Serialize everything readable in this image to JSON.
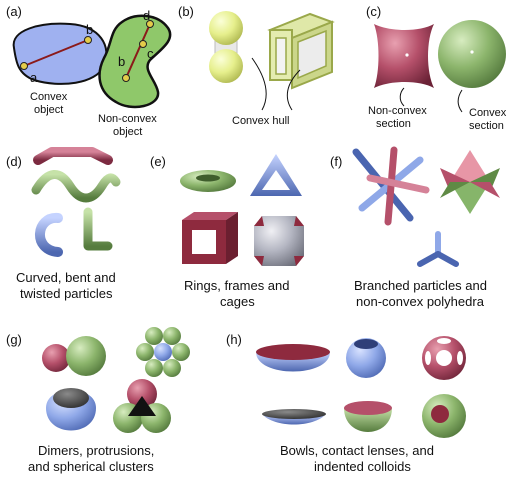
{
  "panels": {
    "a": {
      "tag": "(a)",
      "convex_caption": [
        "Convex",
        "object"
      ],
      "nonconvex_caption": [
        "Non-convex",
        "object"
      ],
      "points_convex": [
        "a",
        "b"
      ],
      "points_nonconvex": [
        "b",
        "c",
        "d"
      ]
    },
    "b": {
      "tag": "(b)",
      "caption": "Convex hull"
    },
    "c": {
      "tag": "(c)",
      "left_caption": [
        "Non-convex",
        "section"
      ],
      "right_caption": [
        "Convex",
        "section"
      ]
    },
    "d": {
      "tag": "(d)",
      "caption": [
        "Curved, bent and",
        "twisted particles"
      ]
    },
    "e": {
      "tag": "(e)",
      "caption": [
        "Rings, frames and",
        "cages"
      ]
    },
    "f": {
      "tag": "(f)",
      "caption": [
        "Branched particles and",
        "non-convex polyhedra"
      ]
    },
    "g": {
      "tag": "(g)",
      "caption": [
        "Dimers, protrusions,",
        "and spherical clusters"
      ]
    },
    "h": {
      "tag": "(h)",
      "caption": [
        "Bowls, contact lenses, and",
        "indented colloids"
      ]
    }
  },
  "colors": {
    "blue": "#8fa8e8",
    "green": "#9cc27a",
    "red": "#b5506a",
    "yellow": "#e6ef8c"
  }
}
